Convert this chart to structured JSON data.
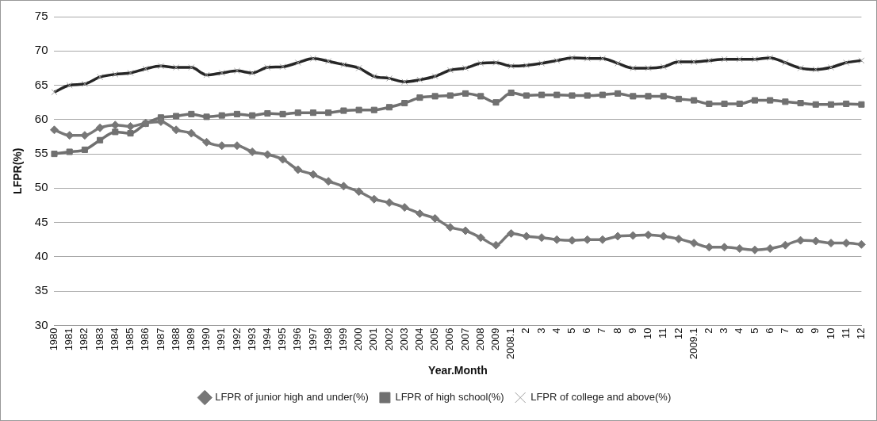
{
  "chart_data": {
    "type": "line",
    "xlabel": "Year.Month",
    "ylabel": "LFPR(%)",
    "categories": [
      "1980",
      "1981",
      "1982",
      "1983",
      "1984",
      "1985",
      "1986",
      "1987",
      "1988",
      "1989",
      "1990",
      "1991",
      "1992",
      "1993",
      "1994",
      "1995",
      "1996",
      "1997",
      "1998",
      "1999",
      "2000",
      "2001",
      "2002",
      "2003",
      "2004",
      "2005",
      "2006",
      "2007",
      "2008",
      "2009",
      "2008.1",
      "2",
      "3",
      "4",
      "5",
      "6",
      "7",
      "8",
      "9",
      "10",
      "11",
      "12",
      "2009.1",
      "2",
      "3",
      "4",
      "5",
      "6",
      "7",
      "8",
      "9",
      "10",
      "11",
      "12"
    ],
    "series": [
      {
        "name": "LFPR of junior high and under(%)",
        "color": "#777777",
        "marker": "diamond",
        "values": [
          58.5,
          57.7,
          57.7,
          58.8,
          59.2,
          59.0,
          59.5,
          59.7,
          58.5,
          58.0,
          56.7,
          56.2,
          56.2,
          55.3,
          54.9,
          54.2,
          52.7,
          52.0,
          51.0,
          50.3,
          49.5,
          48.4,
          47.9,
          47.2,
          46.3,
          45.6,
          44.3,
          43.8,
          42.8,
          41.7,
          43.4,
          43.0,
          42.8,
          42.5,
          42.4,
          42.5,
          42.5,
          43.0,
          43.1,
          43.2,
          43.0,
          42.6,
          42.0,
          41.4,
          41.4,
          41.2,
          41.0,
          41.2,
          41.7,
          42.4,
          42.3,
          42.0,
          42.0,
          41.8
        ]
      },
      {
        "name": "LFPR of high school(%)",
        "color": "#707070",
        "marker": "square",
        "values": [
          55.0,
          55.3,
          55.6,
          57.0,
          58.2,
          58.0,
          59.4,
          60.3,
          60.5,
          60.8,
          60.4,
          60.6,
          60.8,
          60.6,
          60.9,
          60.8,
          61.0,
          61.0,
          61.0,
          61.3,
          61.4,
          61.4,
          61.8,
          62.4,
          63.2,
          63.4,
          63.5,
          63.8,
          63.4,
          62.5,
          63.9,
          63.5,
          63.6,
          63.6,
          63.5,
          63.5,
          63.6,
          63.8,
          63.4,
          63.4,
          63.4,
          63.0,
          62.8,
          62.3,
          62.3,
          62.3,
          62.8,
          62.8,
          62.6,
          62.4,
          62.2,
          62.2,
          62.3,
          62.2
        ]
      },
      {
        "name": "LFPR of college and above(%)",
        "color": "#262626",
        "marker": "cross",
        "values": [
          64.0,
          65.0,
          65.2,
          66.2,
          66.6,
          66.8,
          67.4,
          67.8,
          67.6,
          67.6,
          66.5,
          66.8,
          67.1,
          66.8,
          67.6,
          67.7,
          68.3,
          68.9,
          68.5,
          68.0,
          67.5,
          66.3,
          66.0,
          65.5,
          65.8,
          66.3,
          67.2,
          67.5,
          68.2,
          68.3,
          67.8,
          67.9,
          68.2,
          68.6,
          69.0,
          68.9,
          68.9,
          68.2,
          67.5,
          67.5,
          67.7,
          68.4,
          68.4,
          68.6,
          68.8,
          68.8,
          68.8,
          69.0,
          68.3,
          67.5,
          67.3,
          67.6,
          68.3,
          68.6
        ]
      }
    ],
    "ylim": [
      30,
      75
    ],
    "yticks": [
      30,
      35,
      40,
      45,
      50,
      55,
      60,
      65,
      70,
      75
    ],
    "grid": "y",
    "legend": "bottom"
  }
}
